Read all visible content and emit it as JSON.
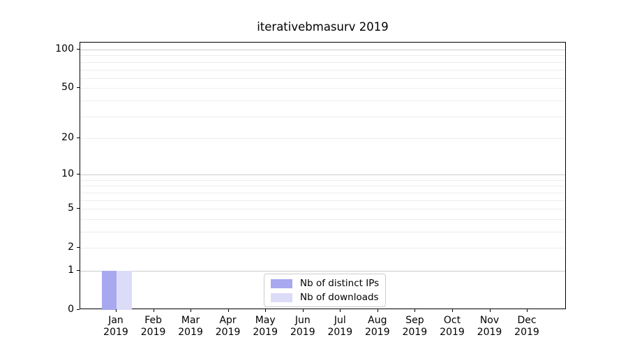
{
  "chart_data": {
    "type": "bar",
    "title": "iterativebmasurv 2019",
    "categories": [
      "Jan 2019",
      "Feb 2019",
      "Mar 2019",
      "Apr 2019",
      "May 2019",
      "Jun 2019",
      "Jul 2019",
      "Aug 2019",
      "Sep 2019",
      "Oct 2019",
      "Nov 2019",
      "Dec 2019"
    ],
    "series": [
      {
        "name": "Nb of distinct IPs",
        "color": "#a8a8f0",
        "values": [
          1,
          0,
          0,
          0,
          0,
          0,
          0,
          0,
          0,
          0,
          0,
          0
        ]
      },
      {
        "name": "Nb of downloads",
        "color": "#dcdcf8",
        "values": [
          1,
          0,
          0,
          0,
          0,
          0,
          0,
          0,
          0,
          0,
          0,
          0
        ]
      }
    ],
    "xlabel": "",
    "ylabel": "",
    "yscale": "log1p",
    "yticks": [
      0,
      1,
      2,
      5,
      10,
      20,
      50,
      100
    ],
    "ylim": [
      0,
      114
    ],
    "grid": "horizontal",
    "legend_position": "inside-bottom-center"
  }
}
